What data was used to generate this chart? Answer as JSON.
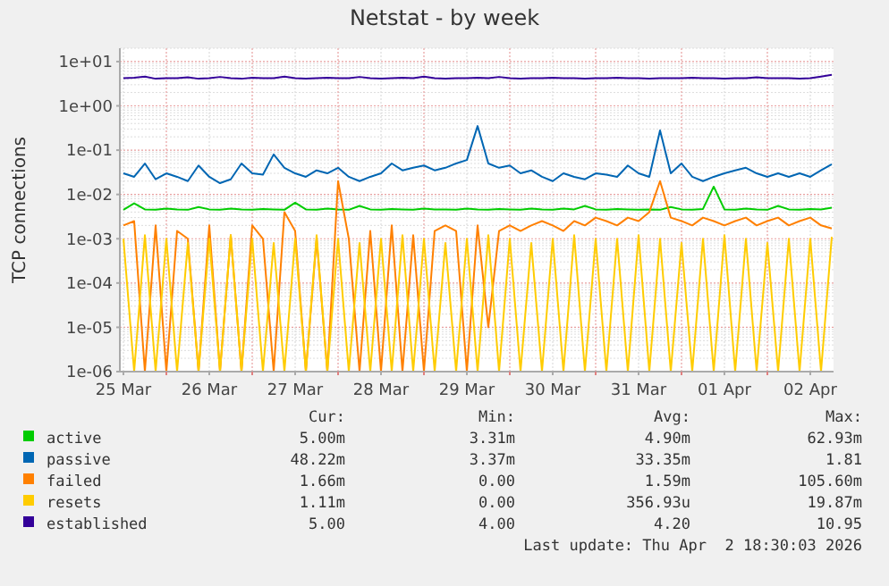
{
  "chart_data": {
    "type": "line",
    "title": "Netstat - by week",
    "ylabel": "TCP connections",
    "log": true,
    "grid": true,
    "legend": "bottom",
    "marker": "none",
    "line_style": "solid",
    "xlim": [
      "2026-03-25T11:00",
      "2026-04-02T18:30"
    ],
    "xticks": [
      {
        "value": "2026-03-25T12:00",
        "label": "25 Mar"
      },
      {
        "value": "2026-03-26T00:00",
        "label": null
      },
      {
        "value": "2026-03-26T12:00",
        "label": "26 Mar"
      },
      {
        "value": "2026-03-27T00:00",
        "label": null
      },
      {
        "value": "2026-03-27T12:00",
        "label": "27 Mar"
      },
      {
        "value": "2026-03-28T00:00",
        "label": null
      },
      {
        "value": "2026-03-28T12:00",
        "label": "28 Mar"
      },
      {
        "value": "2026-03-29T00:00",
        "label": null
      },
      {
        "value": "2026-03-29T12:00",
        "label": "29 Mar"
      },
      {
        "value": "2026-03-30T00:00",
        "label": null
      },
      {
        "value": "2026-03-30T12:00",
        "label": "30 Mar"
      },
      {
        "value": "2026-03-31T00:00",
        "label": null
      },
      {
        "value": "2026-03-31T12:00",
        "label": "31 Mar"
      },
      {
        "value": "2026-04-01T00:00",
        "label": null
      },
      {
        "value": "2026-04-01T12:00",
        "label": "01 Apr"
      },
      {
        "value": "2026-04-02T00:00",
        "label": null
      },
      {
        "value": "2026-04-02T12:00",
        "label": "02 Apr"
      }
    ],
    "ylim": [
      1e-06,
      20
    ],
    "yticks": [
      {
        "value": 1e-06,
        "label": "1e-06"
      },
      {
        "value": 1e-05,
        "label": "1e-05"
      },
      {
        "value": 0.0001,
        "label": "1e-04"
      },
      {
        "value": 0.001,
        "label": "1e-03"
      },
      {
        "value": 0.01,
        "label": "1e-02"
      },
      {
        "value": 0.1,
        "label": "1e-01"
      },
      {
        "value": 1,
        "label": "1e+00"
      },
      {
        "value": 10,
        "label": "1e+01"
      }
    ],
    "x": [
      "2026-03-25T12:00",
      "2026-03-25T15:00",
      "2026-03-25T18:00",
      "2026-03-25T21:00",
      "2026-03-26T00:00",
      "2026-03-26T03:00",
      "2026-03-26T06:00",
      "2026-03-26T09:00",
      "2026-03-26T12:00",
      "2026-03-26T15:00",
      "2026-03-26T18:00",
      "2026-03-26T21:00",
      "2026-03-27T00:00",
      "2026-03-27T03:00",
      "2026-03-27T06:00",
      "2026-03-27T09:00",
      "2026-03-27T12:00",
      "2026-03-27T15:00",
      "2026-03-27T18:00",
      "2026-03-27T21:00",
      "2026-03-28T00:00",
      "2026-03-28T03:00",
      "2026-03-28T06:00",
      "2026-03-28T09:00",
      "2026-03-28T12:00",
      "2026-03-28T15:00",
      "2026-03-28T18:00",
      "2026-03-28T21:00",
      "2026-03-29T00:00",
      "2026-03-29T03:00",
      "2026-03-29T06:00",
      "2026-03-29T09:00",
      "2026-03-29T12:00",
      "2026-03-29T15:00",
      "2026-03-29T18:00",
      "2026-03-29T21:00",
      "2026-03-30T00:00",
      "2026-03-30T03:00",
      "2026-03-30T06:00",
      "2026-03-30T09:00",
      "2026-03-30T12:00",
      "2026-03-30T15:00",
      "2026-03-30T18:00",
      "2026-03-30T21:00",
      "2026-03-31T00:00",
      "2026-03-31T03:00",
      "2026-03-31T06:00",
      "2026-03-31T09:00",
      "2026-03-31T12:00",
      "2026-03-31T15:00",
      "2026-03-31T18:00",
      "2026-03-31T21:00",
      "2026-04-01T00:00",
      "2026-04-01T03:00",
      "2026-04-01T06:00",
      "2026-04-01T09:00",
      "2026-04-01T12:00",
      "2026-04-01T15:00",
      "2026-04-01T18:00",
      "2026-04-01T21:00",
      "2026-04-02T00:00",
      "2026-04-02T03:00",
      "2026-04-02T06:00",
      "2026-04-02T09:00",
      "2026-04-02T12:00",
      "2026-04-02T15:00",
      "2026-04-02T18:00"
    ],
    "series": [
      {
        "name": "active",
        "color": "#00cc00",
        "values": [
          0.0045,
          0.0063,
          0.0046,
          0.0045,
          0.0048,
          0.0046,
          0.0045,
          0.0052,
          0.0046,
          0.0045,
          0.0048,
          0.0046,
          0.0045,
          0.0047,
          0.0046,
          0.0045,
          0.0065,
          0.0046,
          0.0045,
          0.0048,
          0.0046,
          0.0045,
          0.0055,
          0.0046,
          0.0045,
          0.0047,
          0.0046,
          0.0045,
          0.0048,
          0.0046,
          0.0046,
          0.0045,
          0.0048,
          0.0046,
          0.0045,
          0.0047,
          0.0046,
          0.0045,
          0.0048,
          0.0046,
          0.0045,
          0.0048,
          0.0046,
          0.0055,
          0.0046,
          0.0045,
          0.0047,
          0.0046,
          0.0045,
          0.0046,
          0.0045,
          0.0052,
          0.0046,
          0.0045,
          0.0047,
          0.015,
          0.0046,
          0.0045,
          0.0048,
          0.0046,
          0.0045,
          0.0055,
          0.0046,
          0.0045,
          0.0047,
          0.0046,
          0.005
        ]
      },
      {
        "name": "passive",
        "color": "#0066b3",
        "values": [
          0.03,
          0.025,
          0.05,
          0.022,
          0.03,
          0.025,
          0.02,
          0.045,
          0.025,
          0.018,
          0.022,
          0.05,
          0.03,
          0.028,
          0.08,
          0.04,
          0.03,
          0.025,
          0.035,
          0.03,
          0.04,
          0.025,
          0.02,
          0.025,
          0.03,
          0.05,
          0.035,
          0.04,
          0.045,
          0.035,
          0.04,
          0.05,
          0.06,
          0.35,
          0.05,
          0.04,
          0.045,
          0.03,
          0.035,
          0.025,
          0.02,
          0.03,
          0.025,
          0.022,
          0.03,
          0.028,
          0.025,
          0.045,
          0.03,
          0.025,
          0.28,
          0.03,
          0.05,
          0.025,
          0.02,
          0.025,
          0.03,
          0.035,
          0.04,
          0.03,
          0.025,
          0.03,
          0.025,
          0.03,
          0.025,
          0.035,
          0.048
        ]
      },
      {
        "name": "failed",
        "color": "#ff8000",
        "values": [
          0.002,
          0.0025,
          1e-06,
          0.002,
          1e-06,
          0.0015,
          0.001,
          1e-06,
          0.002,
          1e-06,
          0.0012,
          1e-06,
          0.002,
          0.001,
          1e-06,
          0.004,
          0.0015,
          1e-06,
          0.001,
          1e-06,
          0.02,
          0.001,
          1e-06,
          0.0015,
          1e-06,
          0.002,
          1e-06,
          0.0012,
          1e-06,
          0.0015,
          0.002,
          0.0015,
          1e-06,
          0.002,
          1e-05,
          0.0015,
          0.002,
          0.0015,
          0.002,
          0.0025,
          0.002,
          0.0015,
          0.0025,
          0.002,
          0.003,
          0.0025,
          0.002,
          0.003,
          0.0025,
          0.004,
          0.02,
          0.003,
          0.0025,
          0.002,
          0.003,
          0.0025,
          0.002,
          0.0025,
          0.003,
          0.002,
          0.0025,
          0.003,
          0.002,
          0.0025,
          0.003,
          0.002,
          0.0017
        ]
      },
      {
        "name": "resets",
        "color": "#ffcc00",
        "values": [
          0.001,
          1e-06,
          0.0012,
          1e-06,
          0.001,
          1e-06,
          0.0008,
          1e-06,
          0.001,
          1e-06,
          0.0012,
          1e-06,
          0.001,
          1e-06,
          0.0008,
          1e-06,
          0.001,
          1e-06,
          0.0012,
          1e-06,
          0.001,
          1e-06,
          0.0008,
          1e-06,
          0.001,
          1e-06,
          0.0012,
          1e-06,
          0.001,
          1e-06,
          0.0008,
          1e-06,
          0.001,
          1e-06,
          0.0012,
          1e-06,
          0.001,
          1e-06,
          0.0008,
          1e-06,
          0.001,
          1e-06,
          0.0012,
          1e-06,
          0.001,
          1e-06,
          0.001,
          1e-06,
          0.0012,
          1e-06,
          0.001,
          1e-06,
          0.0008,
          1e-06,
          0.001,
          1e-06,
          0.0012,
          1e-06,
          0.001,
          1e-06,
          0.0008,
          1e-06,
          0.001,
          1e-06,
          0.001,
          1e-06,
          0.0011
        ]
      },
      {
        "name": "established",
        "color": "#330099",
        "values": [
          4.2,
          4.3,
          4.6,
          4.1,
          4.2,
          4.2,
          4.4,
          4.1,
          4.2,
          4.5,
          4.2,
          4.1,
          4.3,
          4.2,
          4.2,
          4.6,
          4.2,
          4.1,
          4.2,
          4.3,
          4.2,
          4.2,
          4.5,
          4.2,
          4.1,
          4.2,
          4.3,
          4.2,
          4.6,
          4.2,
          4.1,
          4.2,
          4.2,
          4.3,
          4.2,
          4.5,
          4.2,
          4.1,
          4.2,
          4.2,
          4.3,
          4.2,
          4.2,
          4.1,
          4.2,
          4.2,
          4.3,
          4.2,
          4.2,
          4.1,
          4.2,
          4.2,
          4.2,
          4.3,
          4.2,
          4.2,
          4.1,
          4.2,
          4.2,
          4.4,
          4.2,
          4.2,
          4.2,
          4.1,
          4.2,
          4.6,
          5.0
        ]
      }
    ],
    "annotations": [
      "Cur:",
      "Min:",
      "Avg:",
      "Max:",
      "5.00m",
      "3.31m",
      "4.90m",
      "62.93m",
      "48.22m",
      "3.37m",
      "33.35m",
      "1.81",
      "1.66m",
      "0.00",
      "1.59m",
      "105.60m",
      "1.11m",
      "0.00",
      "356.93u",
      "19.87m",
      "5.00",
      "4.00",
      "4.20",
      "10.95",
      "Last update: Thu Apr  2 18:30:03 2026"
    ]
  }
}
